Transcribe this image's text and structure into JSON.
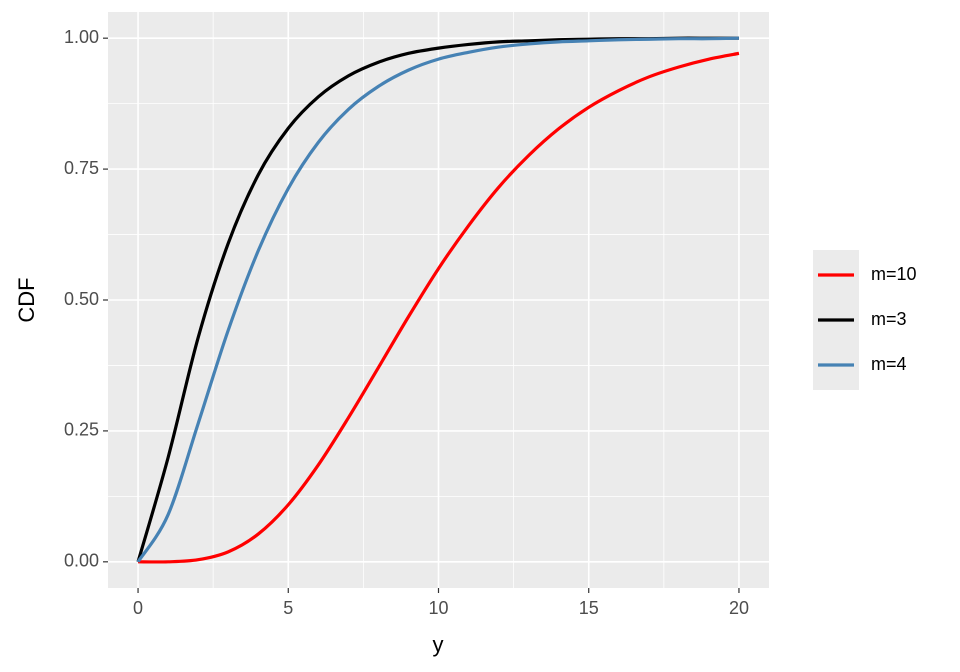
{
  "chart_data": {
    "type": "line",
    "x_label": "y",
    "y_label": "CDF",
    "x": [
      0,
      1,
      2,
      3,
      4,
      5,
      6,
      7,
      8,
      9,
      10,
      11,
      12,
      13,
      14,
      15,
      16,
      17,
      18,
      19,
      20
    ],
    "series": [
      {
        "name": "m=10",
        "color": "#ff0000",
        "values": [
          0,
          0.0,
          0.004,
          0.019,
          0.053,
          0.109,
          0.185,
          0.275,
          0.371,
          0.468,
          0.56,
          0.642,
          0.715,
          0.776,
          0.827,
          0.868,
          0.9,
          0.926,
          0.945,
          0.96,
          0.971
        ]
      },
      {
        "name": "m=3",
        "color": "#000000",
        "values": [
          0,
          0.199,
          0.428,
          0.608,
          0.739,
          0.828,
          0.888,
          0.928,
          0.954,
          0.971,
          0.981,
          0.988,
          0.993,
          0.995,
          0.997,
          0.998,
          0.999,
          0.999,
          1.0,
          1.0,
          1.0
        ]
      },
      {
        "name": "m=4",
        "color": "#4682b4",
        "values": [
          0,
          0.09,
          0.264,
          0.442,
          0.594,
          0.713,
          0.801,
          0.864,
          0.908,
          0.939,
          0.96,
          0.973,
          0.983,
          0.989,
          0.993,
          0.995,
          0.997,
          0.998,
          0.999,
          0.999,
          1.0
        ]
      }
    ],
    "xlim": [
      -1,
      21
    ],
    "ylim": [
      -0.05,
      1.05
    ],
    "xticks": [
      0,
      5,
      10,
      15,
      20
    ],
    "yticks": [
      {
        "value": 0,
        "label": "0.00"
      },
      {
        "value": 0.25,
        "label": "0.25"
      },
      {
        "value": 0.5,
        "label": "0.50"
      },
      {
        "value": 0.75,
        "label": "0.75"
      },
      {
        "value": 1,
        "label": "1.00"
      }
    ],
    "grid": true,
    "legend": "right"
  }
}
